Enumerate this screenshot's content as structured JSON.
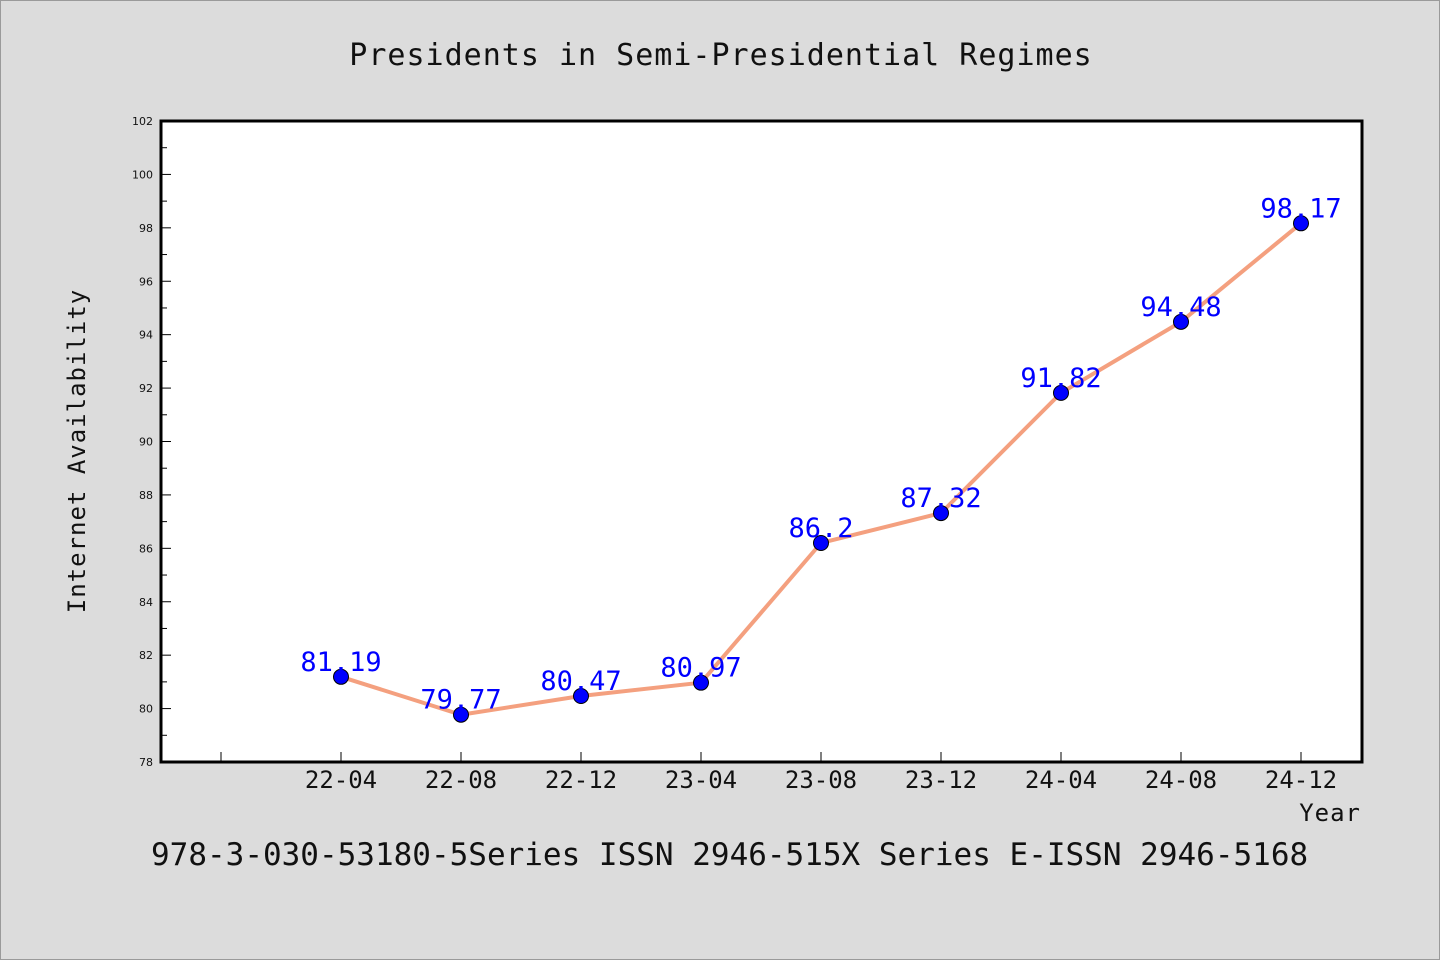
{
  "chart_data": {
    "type": "line",
    "title": "Presidents in Semi-Presidential Regimes",
    "xlabel": "Year",
    "ylabel": "Internet Availability",
    "categories": [
      "22-04",
      "22-08",
      "22-12",
      "23-04",
      "23-08",
      "23-12",
      "24-04",
      "24-08",
      "24-12"
    ],
    "series": [
      {
        "values": [
          81.19,
          79.77,
          80.47,
          80.97,
          86.2,
          87.32,
          91.82,
          94.48,
          98.17
        ],
        "labels": [
          "81.19",
          "79.77",
          "80.47",
          "80.97",
          "86.2",
          "87.32",
          "91.82",
          "94.48",
          "98.17"
        ],
        "line_color": "#f4a07f",
        "marker_color": "#0000ff"
      }
    ],
    "ylim": [
      78,
      102
    ],
    "yticks": [
      "78",
      "80",
      "82",
      "84",
      "86",
      "88",
      "90",
      "92",
      "94",
      "96",
      "98",
      "100",
      "102"
    ],
    "grid": false,
    "legend": "none"
  },
  "footer": "978-3-030-53180-5Series ISSN 2946-515X Series E-ISSN 2946-5168",
  "colors": {
    "background": "#dcdcdc",
    "plot_area": "#ffffff",
    "line": "#f4a07f",
    "marker": "#0000ff",
    "data_label": "#0000ff"
  }
}
